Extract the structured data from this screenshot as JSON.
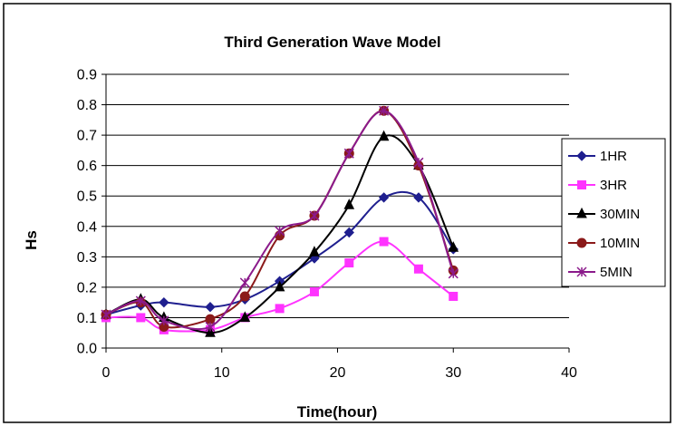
{
  "chart_data": {
    "type": "line",
    "title": "Third Generation Wave Model",
    "xlabel": "Time(hour)",
    "ylabel": "Hs",
    "xlim": [
      0,
      40
    ],
    "ylim": [
      0.0,
      0.9
    ],
    "x_ticks": [
      "0",
      "10",
      "20",
      "30",
      "40"
    ],
    "y_ticks": [
      "0.0",
      "0.1",
      "0.2",
      "0.3",
      "0.4",
      "0.5",
      "0.6",
      "0.7",
      "0.8",
      "0.9"
    ],
    "grid": "horizontal",
    "legend_position": "right",
    "series": [
      {
        "name": "1HR",
        "color": "#1f1f8f",
        "marker": "diamond",
        "x": [
          0,
          3,
          5,
          9,
          12,
          15,
          18,
          21,
          24,
          27,
          30
        ],
        "y": [
          0.11,
          0.14,
          0.15,
          0.135,
          0.16,
          0.22,
          0.295,
          0.38,
          0.495,
          0.495,
          0.325
        ]
      },
      {
        "name": "3HR",
        "color": "#ff33ff",
        "marker": "square",
        "x": [
          0,
          3,
          5,
          9,
          12,
          15,
          18,
          21,
          24,
          27,
          30
        ],
        "y": [
          0.1,
          0.1,
          0.06,
          0.06,
          0.1,
          0.13,
          0.185,
          0.28,
          0.35,
          0.26,
          0.17
        ]
      },
      {
        "name": "30MIN",
        "color": "#000000",
        "marker": "triangle",
        "x": [
          0,
          3,
          5,
          9,
          12,
          15,
          18,
          21,
          24,
          27,
          30
        ],
        "y": [
          0.11,
          0.16,
          0.1,
          0.05,
          0.1,
          0.2,
          0.315,
          0.47,
          0.695,
          0.6,
          0.33
        ]
      },
      {
        "name": "10MIN",
        "color": "#8b1a1a",
        "marker": "circle",
        "x": [
          0,
          3,
          5,
          9,
          12,
          15,
          18,
          21,
          24,
          27,
          30
        ],
        "y": [
          0.11,
          0.15,
          0.07,
          0.095,
          0.17,
          0.37,
          0.435,
          0.64,
          0.78,
          0.6,
          0.255
        ]
      },
      {
        "name": "5MIN",
        "color": "#8b1a8b",
        "marker": "star",
        "x": [
          0,
          3,
          5,
          9,
          12,
          15,
          18,
          21,
          24,
          27,
          30
        ],
        "y": [
          0.11,
          0.155,
          0.09,
          0.07,
          0.215,
          0.385,
          0.435,
          0.64,
          0.78,
          0.61,
          0.245
        ]
      }
    ]
  }
}
